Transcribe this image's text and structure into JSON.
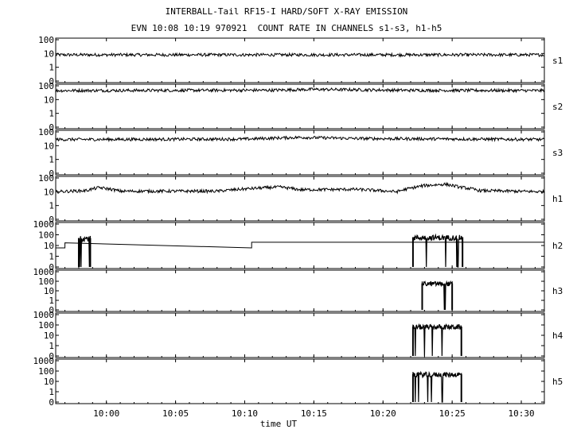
{
  "titles": {
    "line1": "INTERBALL-Tail RF15-I HARD/SOFT X-RAY EMISSION",
    "line2": "EVN 10:08 10:19 970921  COUNT RATE IN CHANNELS s1-s3, h1-h5"
  },
  "chart_data": {
    "type": "line",
    "xlabel": "time UT",
    "xlim": [
      "09:56:20",
      "10:31:40"
    ],
    "x_ticks": [
      "10:00",
      "10:05",
      "10:10",
      "10:15",
      "10:20",
      "10:25",
      "10:30"
    ],
    "yscale": "log",
    "panels": [
      {
        "label": "s1",
        "y_ticks": [
          "100",
          "10",
          "1",
          "0"
        ],
        "ylim": [
          0,
          100
        ],
        "series": [
          {
            "kind": "noisy",
            "x": [
              "09:56:20",
              "10:31:40"
            ],
            "y": [
              8,
              8
            ]
          }
        ]
      },
      {
        "label": "s2",
        "y_ticks": [
          "100",
          "10",
          "1",
          "0"
        ],
        "ylim": [
          0,
          100
        ],
        "series": [
          {
            "kind": "noisy",
            "x": [
              "09:56:20",
              "10:12:00",
              "10:15:00",
              "10:22:00",
              "10:31:40"
            ],
            "y": [
              45,
              48,
              55,
              47,
              45
            ]
          }
        ]
      },
      {
        "label": "s3",
        "y_ticks": [
          "100",
          "10",
          "1",
          "0"
        ],
        "ylim": [
          0,
          100
        ],
        "series": [
          {
            "kind": "noisy",
            "x": [
              "09:56:20",
              "10:10:00",
              "10:14:00",
              "10:18:00",
              "10:31:40"
            ],
            "y": [
              28,
              30,
              40,
              33,
              28
            ]
          }
        ]
      },
      {
        "label": "h1",
        "y_ticks": [
          "100",
          "10",
          "1",
          "0"
        ],
        "ylim": [
          0,
          100
        ],
        "series": [
          {
            "kind": "noisy",
            "x": [
              "09:56:20",
              "09:58:30",
              "09:59:30",
              "10:01:00",
              "10:08:00",
              "10:12:30",
              "10:14:00",
              "10:18:00",
              "10:21:00",
              "10:22:00",
              "10:23:00",
              "10:24:30",
              "10:25:30",
              "10:27:00",
              "10:31:40"
            ],
            "y": [
              10,
              12,
              20,
              11,
              11,
              22,
              14,
              15,
              10,
              18,
              28,
              35,
              22,
              12,
              10
            ]
          }
        ]
      },
      {
        "label": "h2",
        "y_ticks": [
          "1000",
          "100",
          "10",
          "1",
          "0"
        ],
        "ylim": [
          0,
          1000
        ],
        "series": [
          {
            "kind": "step",
            "x": [
              "09:56:20",
              "09:57:00",
              "09:57:00",
              "10:10:30",
              "10:10:30",
              "10:31:40"
            ],
            "y": [
              6,
              6,
              18,
              6,
              20,
              20
            ]
          }
        ],
        "bursts": [
          {
            "x": [
              "09:58:00",
              "09:58:50"
            ],
            "y": 50
          },
          {
            "x": [
              "10:22:10",
              "10:25:45"
            ],
            "y": 60
          }
        ]
      },
      {
        "label": "h3",
        "y_ticks": [
          "1000",
          "100",
          "10",
          "1",
          "0"
        ],
        "ylim": [
          0,
          1000
        ],
        "series": [],
        "bursts": [
          {
            "x": [
              "10:22:50",
              "10:25:00"
            ],
            "y": 60
          }
        ]
      },
      {
        "label": "h4",
        "y_ticks": [
          "1000",
          "100",
          "10",
          "1",
          "0"
        ],
        "ylim": [
          0,
          1000
        ],
        "series": [],
        "bursts": [
          {
            "x": [
              "10:22:10",
              "10:25:40"
            ],
            "y": 70
          }
        ]
      },
      {
        "label": "h5",
        "y_ticks": [
          "1000",
          "100",
          "10",
          "1",
          "0"
        ],
        "ylim": [
          0,
          1000
        ],
        "series": [],
        "bursts": [
          {
            "x": [
              "10:22:10",
              "10:25:40"
            ],
            "y": 50
          }
        ]
      }
    ]
  }
}
